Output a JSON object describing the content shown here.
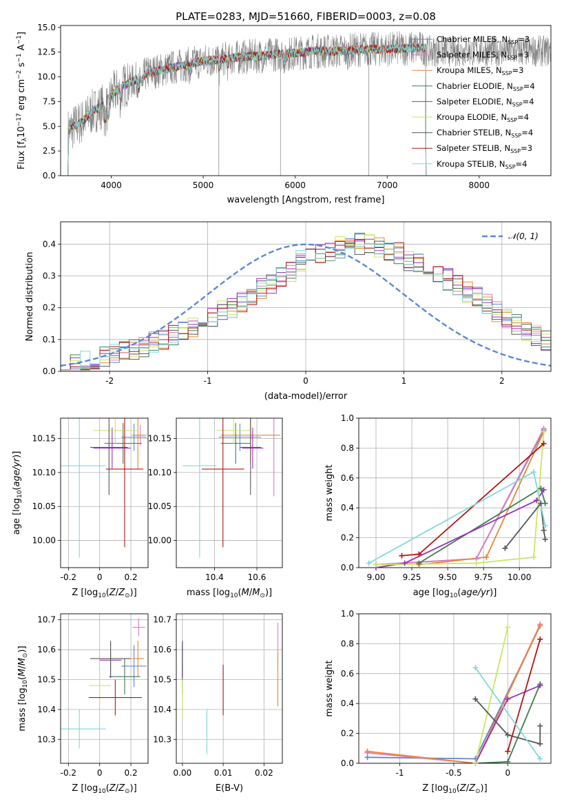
{
  "figure_title": "PLATE=0283, MJD=51660, FIBERID=0003, z=0.08",
  "colors": {
    "chabrier_miles": "#5c86d6",
    "salpeter_miles": "#e07ac0",
    "kroupa_miles": "#e8862e",
    "chabrier_elodie": "#3e7a4e",
    "salpeter_elodie": "#9a2fb8",
    "kroupa_elodie": "#c7e860",
    "chabrier_stelib": "#555555",
    "salpeter_stelib": "#b31212",
    "kroupa_stelib": "#7fd9d9",
    "data": "#808080"
  },
  "chart_data": [
    {
      "id": "spectrum",
      "type": "line",
      "title": "PLATE=0283, MJD=51660, FIBERID=0003, z=0.08",
      "xlabel": "wavelength [Angstrom, rest frame]",
      "ylabel": "Flux [f_λ 10^-17 erg cm^-2 s^-1 A^-1]",
      "xlim": [
        3450,
        8780
      ],
      "ylim": [
        0,
        15.2
      ],
      "xticks": [
        4000,
        5000,
        6000,
        7000,
        8000
      ],
      "yticks": [
        0.0,
        2.5,
        5.0,
        7.5,
        10.0,
        12.5,
        15.0
      ],
      "grid": false,
      "legend_position": "right",
      "legend": [
        "Chabrier MILES, N_SSP=3",
        "Salpeter MILES, N_SSP=3",
        "Kroupa MILES, N_SSP=3",
        "Chabrier ELODIE, N_SSP=4",
        "Salpeter ELODIE, N_SSP=4",
        "Kroupa ELODIE, N_SSP=4",
        "Chabrier STELIB, N_SSP=4",
        "Salpeter STELIB, N_SSP=3",
        "Kroupa STELIB, N_SSP=4"
      ],
      "continuum_x": [
        3530,
        3600,
        3700,
        3800,
        3900,
        4000,
        4100,
        4200,
        4300,
        4400,
        4500,
        4600,
        4700,
        4800,
        4900,
        5000,
        5200,
        5400,
        5600,
        5800,
        6000,
        6200,
        6400,
        6600,
        6800,
        7000,
        7200,
        7400
      ],
      "continuum_y": [
        4.5,
        5.0,
        5.6,
        6.5,
        7.0,
        8.1,
        8.9,
        9.4,
        9.9,
        10.4,
        10.6,
        10.8,
        11.0,
        11.2,
        11.4,
        11.6,
        11.8,
        12.0,
        12.1,
        12.3,
        12.4,
        12.6,
        12.6,
        12.7,
        12.8,
        12.8,
        12.9,
        12.9
      ],
      "data_noise": 1.8
    },
    {
      "id": "residuals",
      "type": "histogram",
      "xlabel": "(data-model)/error",
      "ylabel": "Normed distribution",
      "xlim": [
        -2.5,
        2.5
      ],
      "ylim": [
        0,
        0.47
      ],
      "xticks": [
        -2,
        -1,
        0,
        1,
        2
      ],
      "yticks": [
        0.0,
        0.1,
        0.2,
        0.3,
        0.4
      ],
      "grid": true,
      "legend_position": "top-right",
      "legend": [
        "𝒩(0, 1)"
      ],
      "bin_edges_start": -2.5,
      "bin_width": 0.1,
      "base_values": [
        0.02,
        0.025,
        0.03,
        0.035,
        0.045,
        0.055,
        0.06,
        0.07,
        0.08,
        0.09,
        0.1,
        0.11,
        0.125,
        0.14,
        0.16,
        0.17,
        0.19,
        0.2,
        0.22,
        0.24,
        0.26,
        0.28,
        0.3,
        0.31,
        0.33,
        0.35,
        0.37,
        0.38,
        0.39,
        0.395,
        0.4,
        0.395,
        0.39,
        0.38,
        0.37,
        0.35,
        0.34,
        0.32,
        0.31,
        0.29,
        0.27,
        0.25,
        0.23,
        0.21,
        0.19,
        0.17,
        0.15,
        0.13,
        0.11,
        0.095
      ]
    },
    {
      "id": "age_vs_Z",
      "type": "scatter",
      "xlabel": "Z [log10(Z/Z⊙)]",
      "ylabel": "age [log10(age/yr)]",
      "xlim": [
        -0.25,
        0.31
      ],
      "ylim": [
        9.96,
        10.18
      ],
      "xticks": [
        -0.2,
        0.0,
        0.2
      ],
      "yticks": [
        10.0,
        10.05,
        10.1,
        10.15
      ],
      "grid": true,
      "points": [
        {
          "model": "chabrier_miles",
          "x": 0.22,
          "y": 10.152,
          "xerr": 0.08,
          "yerr": 0.02
        },
        {
          "model": "salpeter_miles",
          "x": 0.26,
          "y": 10.155,
          "xerr": 0.04,
          "yerr": 0.015
        },
        {
          "model": "kroupa_miles",
          "x": 0.245,
          "y": 10.155,
          "xerr": 0.04,
          "yerr": 0.05
        },
        {
          "model": "chabrier_elodie",
          "x": 0.15,
          "y": 10.143,
          "xerr": 0.12,
          "yerr": 0.03
        },
        {
          "model": "salpeter_elodie",
          "x": 0.08,
          "y": 10.136,
          "xerr": 0.12,
          "yerr": 0.03
        },
        {
          "model": "kroupa_elodie",
          "x": 0.1,
          "y": 10.162,
          "xerr": 0.14,
          "yerr": 0.02
        },
        {
          "model": "chabrier_stelib",
          "x": 0.06,
          "y": 10.137,
          "xerr": 0.12,
          "yerr": 0.07
        },
        {
          "model": "salpeter_stelib",
          "x": 0.16,
          "y": 10.105,
          "xerr": 0.12,
          "yerr": 0.115
        },
        {
          "model": "kroupa_stelib",
          "x": -0.13,
          "y": 10.11,
          "xerr": 0.17,
          "yerr": 0.135
        }
      ]
    },
    {
      "id": "age_vs_mass",
      "type": "scatter",
      "xlabel": "mass [log10(M/M⊙)]",
      "ylabel": "",
      "xlim": [
        10.22,
        10.72
      ],
      "ylim": [
        9.96,
        10.18
      ],
      "xticks": [
        10.4,
        10.6
      ],
      "yticks": [
        10.0,
        10.05,
        10.1,
        10.15
      ],
      "grid": true,
      "points": [
        {
          "model": "chabrier_miles",
          "x": 10.52,
          "y": 10.152,
          "xerr": 0.1,
          "yerr": 0.02
        },
        {
          "model": "salpeter_miles",
          "x": 10.68,
          "y": 10.155,
          "xerr": 0.0,
          "yerr": 0.09
        },
        {
          "model": "kroupa_miles",
          "x": 10.57,
          "y": 10.155,
          "xerr": 0.14,
          "yerr": 0.04
        },
        {
          "model": "chabrier_elodie",
          "x": 10.5,
          "y": 10.143,
          "xerr": 0.07,
          "yerr": 0.03
        },
        {
          "model": "salpeter_elodie",
          "x": 10.58,
          "y": 10.136,
          "xerr": 0.05,
          "yerr": 0.03
        },
        {
          "model": "kroupa_elodie",
          "x": 10.49,
          "y": 10.162,
          "xerr": 0.08,
          "yerr": 0.02
        },
        {
          "model": "chabrier_stelib",
          "x": 10.57,
          "y": 10.137,
          "xerr": 0.05,
          "yerr": 0.07
        },
        {
          "model": "salpeter_stelib",
          "x": 10.44,
          "y": 10.105,
          "xerr": 0.1,
          "yerr": 0.115
        },
        {
          "model": "kroupa_stelib",
          "x": 10.33,
          "y": 10.11,
          "xerr": 0.08,
          "yerr": 0.135
        }
      ]
    },
    {
      "id": "weight_vs_age",
      "type": "line",
      "xlabel": "age [log10(age/yr)]",
      "ylabel": "mass weight",
      "xlim": [
        8.88,
        10.22
      ],
      "ylim": [
        0,
        1.0
      ],
      "xticks": [
        9.0,
        9.25,
        9.5,
        9.75,
        10.0
      ],
      "xtick_labels": [
        "9.00",
        "9.25",
        "9.50",
        "9.75",
        "10.00"
      ],
      "yticks": [
        0.0,
        0.2,
        0.4,
        0.6,
        0.8,
        1.0
      ],
      "grid": true,
      "series": [
        {
          "model": "chabrier_miles",
          "x": [
            9.0,
            9.7,
            10.17
          ],
          "y": [
            0.02,
            0.06,
            0.92
          ]
        },
        {
          "model": "salpeter_miles",
          "x": [
            9.0,
            9.7,
            10.17
          ],
          "y": [
            0.02,
            0.06,
            0.93
          ]
        },
        {
          "model": "kroupa_miles",
          "x": [
            9.3,
            9.77,
            10.17
          ],
          "y": [
            0.02,
            0.07,
            0.91
          ]
        },
        {
          "model": "chabrier_elodie",
          "x": [
            9.3,
            10.15,
            10.18
          ],
          "y": [
            0.03,
            0.53,
            0.43
          ]
        },
        {
          "model": "salpeter_elodie",
          "x": [
            9.0,
            9.2,
            10.12,
            10.17
          ],
          "y": [
            0.0,
            0.03,
            0.45,
            0.52
          ]
        },
        {
          "model": "kroupa_elodie",
          "x": [
            9.0,
            9.7,
            10.1,
            10.17
          ],
          "y": [
            0.02,
            0.03,
            0.07,
            0.91
          ]
        },
        {
          "model": "chabrier_stelib",
          "x": [
            9.9,
            10.15,
            10.17,
            10.18
          ],
          "y": [
            0.13,
            0.43,
            0.25,
            0.19
          ]
        },
        {
          "model": "salpeter_stelib",
          "x": [
            9.18,
            9.3,
            10.17
          ],
          "y": [
            0.08,
            0.09,
            0.83
          ]
        },
        {
          "model": "kroupa_stelib",
          "x": [
            8.95,
            10.1,
            10.18
          ],
          "y": [
            0.03,
            0.64,
            0.28
          ]
        }
      ]
    },
    {
      "id": "mass_vs_Z",
      "type": "scatter",
      "xlabel": "Z [log10(Z/Z⊙)]",
      "ylabel": "mass [log10(M/M⊙)]",
      "xlim": [
        -0.25,
        0.31
      ],
      "ylim": [
        10.22,
        10.72
      ],
      "xticks": [
        -0.2,
        0.0,
        0.2
      ],
      "yticks": [
        10.3,
        10.4,
        10.5,
        10.6,
        10.7
      ],
      "grid": true,
      "points": [
        {
          "model": "chabrier_miles",
          "x": 0.22,
          "y": 10.545,
          "xerr": 0.08,
          "yerr": 0.07
        },
        {
          "model": "salpeter_miles",
          "x": 0.25,
          "y": 10.675,
          "xerr": 0.04,
          "yerr": 0.03
        },
        {
          "model": "kroupa_miles",
          "x": 0.245,
          "y": 10.57,
          "xerr": 0.04,
          "yerr": 0.06
        },
        {
          "model": "chabrier_elodie",
          "x": 0.16,
          "y": 10.51,
          "xerr": 0.1,
          "yerr": 0.06
        },
        {
          "model": "salpeter_elodie",
          "x": 0.07,
          "y": 10.565,
          "xerr": 0.07,
          "yerr": 0.06
        },
        {
          "model": "kroupa_elodie",
          "x": 0.0,
          "y": 10.48,
          "xerr": 0.07,
          "yerr": 0.06
        },
        {
          "model": "chabrier_stelib",
          "x": 0.07,
          "y": 10.57,
          "xerr": 0.13,
          "yerr": 0.06
        },
        {
          "model": "salpeter_stelib",
          "x": 0.1,
          "y": 10.44,
          "xerr": 0.17,
          "yerr": 0.06
        },
        {
          "model": "kroupa_stelib",
          "x": -0.13,
          "y": 10.335,
          "xerr": 0.17,
          "yerr": 0.065
        }
      ]
    },
    {
      "id": "mass_vs_ebv",
      "type": "scatter",
      "xlabel": "E(B-V)",
      "ylabel": "",
      "xlim": [
        -0.0015,
        0.0245
      ],
      "ylim": [
        10.22,
        10.72
      ],
      "xticks": [
        0.0,
        0.01,
        0.02
      ],
      "xtick_labels": [
        "0.00",
        "0.01",
        "0.02"
      ],
      "yticks": [
        10.3,
        10.4,
        10.5,
        10.6,
        10.7
      ],
      "grid": true,
      "points": [
        {
          "model": "chabrier_miles",
          "x": 0.0,
          "y": 10.545,
          "xerr": 0.0,
          "yerr": 0.07
        },
        {
          "model": "salpeter_miles",
          "x": 0.0234,
          "y": 10.62,
          "xerr": 0.0,
          "yerr": 0.07
        },
        {
          "model": "kroupa_miles",
          "x": 0.0234,
          "y": 10.5,
          "xerr": 0.0,
          "yerr": 0.09
        },
        {
          "model": "chabrier_elodie",
          "x": 0.0,
          "y": 10.51,
          "xerr": 0.0,
          "yerr": 0.06
        },
        {
          "model": "salpeter_elodie",
          "x": 0.0,
          "y": 10.565,
          "xerr": 0.0,
          "yerr": 0.06
        },
        {
          "model": "kroupa_elodie",
          "x": 0.0,
          "y": 10.44,
          "xerr": 0.0,
          "yerr": 0.06
        },
        {
          "model": "chabrier_stelib",
          "x": 0.0,
          "y": 10.57,
          "xerr": 0.0,
          "yerr": 0.06
        },
        {
          "model": "salpeter_stelib",
          "x": 0.01,
          "y": 10.465,
          "xerr": 0.0,
          "yerr": 0.085
        },
        {
          "model": "kroupa_stelib",
          "x": 0.006,
          "y": 10.325,
          "xerr": 0.0,
          "yerr": 0.075
        }
      ]
    },
    {
      "id": "weight_vs_Z",
      "type": "line",
      "xlabel": "Z [log10(Z/Z⊙)]",
      "ylabel": "mass weight",
      "xlim": [
        -1.38,
        0.4
      ],
      "ylim": [
        0,
        1.0
      ],
      "xticks": [
        -1.0,
        -0.5,
        0.0
      ],
      "yticks": [
        0.0,
        0.2,
        0.4,
        0.6,
        0.8,
        1.0
      ],
      "grid": true,
      "series": [
        {
          "model": "chabrier_miles",
          "x": [
            -1.3,
            -0.3,
            0.3
          ],
          "y": [
            0.04,
            0.03,
            0.92
          ]
        },
        {
          "model": "salpeter_miles",
          "x": [
            -1.3,
            -0.3,
            0.3
          ],
          "y": [
            0.07,
            0.0,
            0.93
          ]
        },
        {
          "model": "kroupa_miles",
          "x": [
            -1.3,
            -0.3,
            0.3
          ],
          "y": [
            0.08,
            0.0,
            0.92
          ]
        },
        {
          "model": "chabrier_elodie",
          "x": [
            -0.3,
            0.0,
            0.3
          ],
          "y": [
            0.0,
            0.01,
            0.53
          ]
        },
        {
          "model": "salpeter_elodie",
          "x": [
            -0.3,
            0.0,
            0.3
          ],
          "y": [
            0.0,
            0.43,
            0.52
          ]
        },
        {
          "model": "kroupa_elodie",
          "x": [
            -0.3,
            0.0
          ],
          "y": [
            0.0,
            0.91
          ]
        },
        {
          "model": "chabrier_stelib",
          "x": [
            -0.3,
            0.0,
            0.3,
            0.3
          ],
          "y": [
            0.43,
            0.19,
            0.13,
            0.25
          ]
        },
        {
          "model": "salpeter_stelib",
          "x": [
            0.0,
            0.3
          ],
          "y": [
            0.08,
            0.83
          ]
        },
        {
          "model": "kroupa_stelib",
          "x": [
            -0.3,
            0.3
          ],
          "y": [
            0.64,
            0.03
          ]
        }
      ]
    }
  ]
}
